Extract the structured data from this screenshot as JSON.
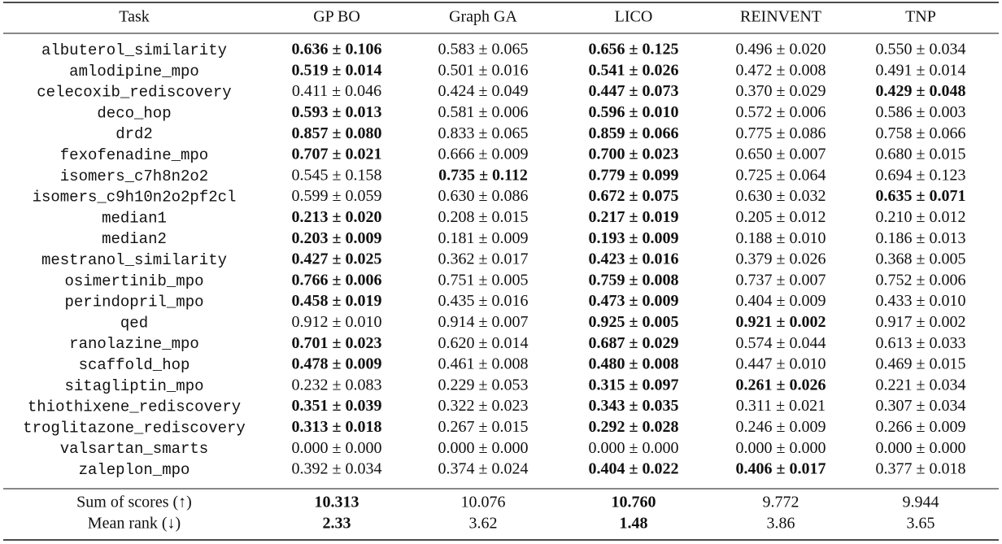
{
  "table": {
    "header": [
      "Task",
      "GP BO",
      "Graph GA",
      "LICO",
      "REINVENT",
      "TNP"
    ],
    "rows": [
      [
        "albuterol_similarity",
        {
          "text": "0.636 ± 0.106",
          "color": "#7a1a7a"
        },
        "0.583 ± 0.065",
        {
          "text": "0.656 ± 0.125",
          "color": "#1c1cd4"
        },
        "0.496 ± 0.020",
        "0.550 ± 0.034"
      ],
      [
        "amlodipine_mpo",
        {
          "text": "0.519 ± 0.014",
          "color": "#7a1a7a"
        },
        "0.501 ± 0.016",
        {
          "text": "0.541 ± 0.026",
          "color": "#1c1cd4"
        },
        "0.472 ± 0.008",
        "0.491 ± 0.014"
      ],
      [
        "celecoxib_rediscovery",
        "0.411 ± 0.046",
        "0.424 ± 0.049",
        {
          "text": "0.447 ± 0.073",
          "color": "#1c1cd4"
        },
        "0.370 ± 0.029",
        {
          "text": "0.429 ± 0.048",
          "color": "#7a1a7a"
        }
      ],
      [
        "deco_hop",
        {
          "text": "0.593 ± 0.013",
          "color": "#7a1a7a"
        },
        "0.581 ± 0.006",
        {
          "text": "0.596 ± 0.010",
          "color": "#1c1cd4"
        },
        "0.572 ± 0.006",
        "0.586 ± 0.003"
      ],
      [
        "drd2",
        {
          "text": "0.857 ± 0.080",
          "color": "#7a1a7a"
        },
        "0.833 ± 0.065",
        {
          "text": "0.859 ± 0.066",
          "color": "#1c1cd4"
        },
        "0.775 ± 0.086",
        "0.758 ± 0.066"
      ],
      [
        "fexofenadine_mpo",
        {
          "text": "0.707 ± 0.021",
          "color": "#1c1cd4"
        },
        "0.666 ± 0.009",
        {
          "text": "0.700 ± 0.023",
          "color": "#7a1a7a"
        },
        "0.650 ± 0.007",
        "0.680 ± 0.015"
      ],
      [
        "isomers_c7h8n2o2",
        "0.545 ± 0.158",
        {
          "text": "0.735 ± 0.112",
          "color": "#7a1a7a"
        },
        {
          "text": "0.779 ± 0.099",
          "color": "#1c1cd4"
        },
        "0.725 ± 0.064",
        "0.694 ± 0.123"
      ],
      [
        "isomers_c9h10n2o2pf2cl",
        "0.599 ± 0.059",
        "0.630 ± 0.086",
        {
          "text": "0.672 ± 0.075",
          "color": "#1c1cd4"
        },
        "0.630 ± 0.032",
        {
          "text": "0.635 ± 0.071",
          "color": "#7a1a7a"
        }
      ],
      [
        "median1",
        {
          "text": "0.213 ± 0.020",
          "color": "#7a1a7a"
        },
        "0.208 ± 0.015",
        {
          "text": "0.217 ± 0.019",
          "color": "#1c1cd4"
        },
        "0.205 ± 0.012",
        "0.210 ± 0.012"
      ],
      [
        "median2",
        {
          "text": "0.203 ± 0.009",
          "color": "#1c1cd4"
        },
        "0.181 ± 0.009",
        {
          "text": "0.193 ± 0.009",
          "color": "#7a1a7a"
        },
        "0.188 ± 0.010",
        "0.186 ± 0.013"
      ],
      [
        "mestranol_similarity",
        {
          "text": "0.427 ± 0.025",
          "color": "#1c1cd4"
        },
        "0.362 ± 0.017",
        {
          "text": "0.423 ± 0.016",
          "color": "#7a1a7a"
        },
        "0.379 ± 0.026",
        "0.368 ± 0.005"
      ],
      [
        "osimertinib_mpo",
        {
          "text": "0.766 ± 0.006",
          "color": "#1c1cd4"
        },
        "0.751 ± 0.005",
        {
          "text": "0.759 ± 0.008",
          "color": "#7a1a7a"
        },
        "0.737 ± 0.007",
        "0.752 ± 0.006"
      ],
      [
        "perindopril_mpo",
        {
          "text": "0.458 ± 0.019",
          "color": "#7a1a7a"
        },
        "0.435 ± 0.016",
        {
          "text": "0.473 ± 0.009",
          "color": "#1c1cd4"
        },
        "0.404 ± 0.009",
        "0.433 ± 0.010"
      ],
      [
        "qed",
        "0.912 ± 0.010",
        "0.914 ± 0.007",
        {
          "text": "0.925 ± 0.005",
          "color": "#1c1cd4"
        },
        {
          "text": "0.921 ± 0.002",
          "color": "#7a1a7a"
        },
        "0.917 ± 0.002"
      ],
      [
        "ranolazine_mpo",
        {
          "text": "0.701 ± 0.023",
          "color": "#1c1cd4"
        },
        "0.620 ± 0.014",
        {
          "text": "0.687 ± 0.029",
          "color": "#7a1a7a"
        },
        "0.574 ± 0.044",
        "0.613 ± 0.033"
      ],
      [
        "scaffold_hop",
        {
          "text": "0.478 ± 0.009",
          "color": "#7a1a7a"
        },
        "0.461 ± 0.008",
        {
          "text": "0.480 ± 0.008",
          "color": "#1c1cd4"
        },
        "0.447 ± 0.010",
        "0.469 ± 0.015"
      ],
      [
        "sitagliptin_mpo",
        "0.232 ± 0.083",
        "0.229 ± 0.053",
        {
          "text": "0.315 ± 0.097",
          "color": "#1c1cd4"
        },
        {
          "text": "0.261 ± 0.026",
          "color": "#7a1a7a"
        },
        "0.221 ± 0.034"
      ],
      [
        "thiothixene_rediscovery",
        {
          "text": "0.351 ± 0.039",
          "color": "#1c1cd4"
        },
        "0.322 ± 0.023",
        {
          "text": "0.343 ± 0.035",
          "color": "#7a1a7a"
        },
        "0.311 ± 0.021",
        "0.307 ± 0.034"
      ],
      [
        "troglitazone_rediscovery",
        {
          "text": "0.313 ± 0.018",
          "color": "#1c1cd4"
        },
        "0.267 ± 0.015",
        {
          "text": "0.292 ± 0.028",
          "color": "#7a1a7a"
        },
        "0.246 ± 0.009",
        "0.266 ± 0.009"
      ],
      [
        "valsartan_smarts",
        "0.000 ± 0.000",
        "0.000 ± 0.000",
        "0.000 ± 0.000",
        "0.000 ± 0.000",
        "0.000 ± 0.000"
      ],
      [
        "zaleplon_mpo",
        "0.392 ± 0.034",
        "0.374 ± 0.024",
        {
          "text": "0.404 ± 0.022",
          "color": "#7a1a7a"
        },
        {
          "text": "0.406 ± 0.017",
          "color": "#1c1cd4"
        },
        "0.377 ± 0.018"
      ]
    ],
    "summary": [
      [
        "Sum of scores (↑)",
        {
          "text": "10.313",
          "color": "#7a1a7a"
        },
        "10.076",
        {
          "text": "10.760",
          "color": "#1c1cd4"
        },
        "9.772",
        "9.944"
      ],
      [
        "Mean rank (↓)",
        {
          "text": "2.33",
          "color": "#7a1a7a"
        },
        "3.62",
        {
          "text": "1.48",
          "color": "#1c1cd4"
        },
        "3.86",
        "3.65"
      ]
    ]
  }
}
